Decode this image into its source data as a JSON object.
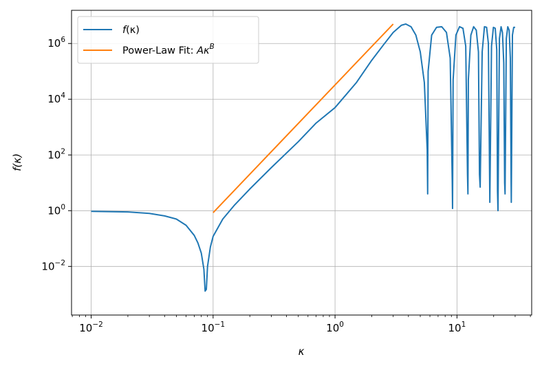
{
  "chart_data": {
    "type": "line",
    "x_scale": "log",
    "y_scale": "log",
    "xlim": [
      0.0069,
      41
    ],
    "ylim": [
      0.00018,
      15500000
    ],
    "grid": true,
    "legend_position": "top-left",
    "xlabel": {
      "base": "κ"
    },
    "ylabel": {
      "base": "f(κ)"
    },
    "x_ticks": [
      {
        "value": 0.01,
        "base": "10",
        "exp": "−2"
      },
      {
        "value": 0.1,
        "base": "10",
        "exp": "−1"
      },
      {
        "value": 1,
        "base": "10",
        "exp": "0"
      },
      {
        "value": 10,
        "base": "10",
        "exp": "1"
      }
    ],
    "y_ticks": [
      {
        "value": 0.01,
        "base": "10",
        "exp": "−2"
      },
      {
        "value": 1,
        "base": "10",
        "exp": "0"
      },
      {
        "value": 100,
        "base": "10",
        "exp": "2"
      },
      {
        "value": 10000,
        "base": "10",
        "exp": "4"
      },
      {
        "value": 1000000,
        "base": "10",
        "exp": "6"
      }
    ],
    "series": [
      {
        "name": "f(κ)",
        "legend": {
          "prefix": "",
          "italic": "f",
          "rest": "(κ)"
        },
        "color": "#1f77b4",
        "x": [
          0.01,
          0.02,
          0.03,
          0.04,
          0.05,
          0.06,
          0.07,
          0.075,
          0.08,
          0.084,
          0.086,
          0.088,
          0.09,
          0.095,
          0.1,
          0.12,
          0.15,
          0.2,
          0.3,
          0.5,
          0.7,
          1.0,
          1.5,
          2.0,
          2.5,
          3.0,
          3.5,
          3.8,
          4.2,
          4.6,
          5.0,
          5.4,
          5.7,
          5.75,
          5.8,
          6.2,
          6.8,
          7.5,
          8.2,
          8.8,
          9.15,
          9.2,
          9.3,
          9.8,
          10.5,
          11.2,
          11.8,
          12.2,
          12.3,
          12.4,
          13.0,
          13.7,
          14.4,
          15.0,
          15.3,
          15.5,
          16.1,
          16.8,
          17.5,
          18.1,
          18.5,
          18.6,
          19.2,
          19.9,
          20.6,
          21.2,
          21.5,
          21.7,
          22.3,
          23.0,
          23.6,
          24.2,
          24.6,
          24.8,
          25.4,
          26.1,
          26.8,
          27.4,
          27.8,
          27.9,
          28.5,
          29.2,
          30.0
        ],
        "y": [
          0.95,
          0.9,
          0.8,
          0.65,
          0.5,
          0.3,
          0.13,
          0.07,
          0.03,
          0.008,
          0.0013,
          0.0015,
          0.01,
          0.05,
          0.12,
          0.5,
          1.6,
          6.0,
          35,
          300,
          1400,
          5000,
          40000,
          250000,
          900000,
          2500000,
          4500000,
          5000000,
          4000000,
          2000000,
          500000,
          40000,
          150,
          4,
          100000,
          2000000,
          3800000,
          4000000,
          2500000,
          300000,
          10,
          1.2,
          50000,
          2000000,
          4000000,
          3500000,
          800000,
          20,
          4,
          50000,
          2000000,
          4000000,
          3000000,
          500000,
          20,
          7,
          500000,
          4000000,
          3800000,
          1000000,
          30,
          2,
          800000,
          3800000,
          3500000,
          600000,
          5,
          1,
          1500000,
          4000000,
          2500000,
          200000,
          10,
          4,
          1500000,
          4000000,
          3000000,
          300000,
          10,
          2,
          2000000,
          3800000,
          3800000
        ]
      },
      {
        "name": "Power-Law Fit: Aκ^B",
        "legend": {
          "prefix": "Power-Law Fit: ",
          "italic": "Aκ",
          "sup": "B"
        },
        "color": "#ff7f0e",
        "x": [
          0.1,
          3.0
        ],
        "y": [
          0.85,
          5000000
        ]
      }
    ]
  }
}
